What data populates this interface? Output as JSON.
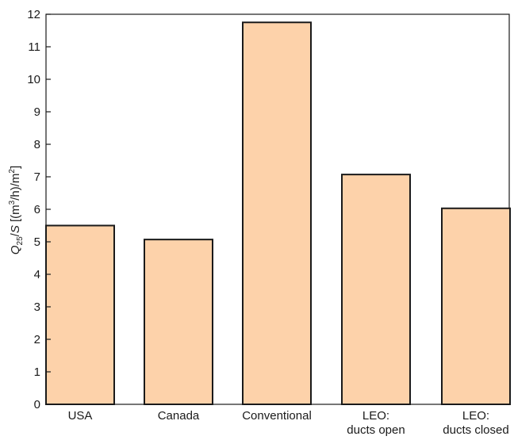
{
  "chart_data": {
    "type": "bar",
    "categories": [
      "USA",
      "Canada",
      "Conventional",
      "LEO: ducts open",
      "LEO: ducts closed"
    ],
    "category_lines": [
      [
        "USA"
      ],
      [
        "Canada"
      ],
      [
        "Conventional"
      ],
      [
        "LEO:",
        "ducts open"
      ],
      [
        "LEO:",
        "ducts closed"
      ]
    ],
    "values": [
      5.5,
      5.07,
      11.75,
      7.07,
      6.03
    ],
    "ylabel": "Q25/S [(m3/h)/m2]",
    "ylim": [
      0,
      12
    ],
    "yticks": [
      0,
      1,
      2,
      3,
      4,
      5,
      6,
      7,
      8,
      9,
      10,
      11,
      12
    ],
    "grid": false,
    "bar_color": "#fdd2aa",
    "edge_color": "#1a1a1a"
  }
}
